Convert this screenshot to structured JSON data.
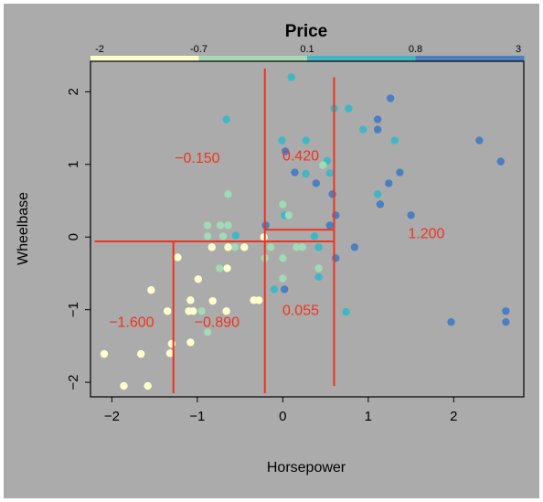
{
  "chart_data": {
    "type": "scatter",
    "title": "Price",
    "xlabel": "Horsepower",
    "ylabel": "Wheelbase",
    "xlim": [
      -2.25,
      2.82
    ],
    "ylim": [
      -2.2,
      2.42
    ],
    "x_ticks": [
      -2,
      -1,
      0,
      1,
      2
    ],
    "y_ticks": [
      -2,
      -1,
      0,
      1,
      2
    ],
    "grid": false,
    "background": "#ababab",
    "colorbar": {
      "position": "top",
      "breaks": [
        -2,
        -0.7,
        0.1,
        0.8,
        3
      ],
      "break_labels": [
        "-2",
        "-0.7",
        "0.1",
        "0.8",
        "3"
      ],
      "colors": [
        "#ffffcc",
        "#a1dab4",
        "#41b6c4",
        "#4a7fc1"
      ]
    },
    "line_color": "#f0321e",
    "partition_lines": [
      {
        "x": [
          -2.2,
          0.6
        ],
        "y": [
          -0.06,
          -0.06
        ]
      },
      {
        "x": [
          -1.28,
          -1.28
        ],
        "y": [
          -2.15,
          -0.06
        ]
      },
      {
        "x": [
          -0.21,
          -0.21
        ],
        "y": [
          -2.15,
          2.32
        ]
      },
      {
        "x": [
          -0.21,
          0.6
        ],
        "y": [
          0.1,
          0.1
        ]
      },
      {
        "x": [
          0.6,
          0.6
        ],
        "y": [
          -2.05,
          2.2
        ]
      }
    ],
    "region_labels": [
      {
        "text": "-0.150",
        "x": -1.0,
        "y": 1.1
      },
      {
        "text": "0.420",
        "x": 0.21,
        "y": 1.13
      },
      {
        "text": "1.200",
        "x": 1.68,
        "y": 0.06
      },
      {
        "text": "0.055",
        "x": 0.21,
        "y": -1.0
      },
      {
        "text": "-1.600",
        "x": -1.77,
        "y": -1.16
      },
      {
        "text": "-0.890",
        "x": -0.77,
        "y": -1.16
      }
    ],
    "points": [
      {
        "x": 0.1,
        "y": 2.2,
        "c": 3
      },
      {
        "x": -0.66,
        "y": 1.62,
        "c": 3
      },
      {
        "x": 0.6,
        "y": 1.77,
        "c": 3
      },
      {
        "x": 0.77,
        "y": 1.77,
        "c": 3
      },
      {
        "x": 0.94,
        "y": 1.48,
        "c": 3
      },
      {
        "x": 1.31,
        "y": 1.33,
        "c": 3
      },
      {
        "x": 0.27,
        "y": 1.33,
        "c": 3
      },
      {
        "x": 0.27,
        "y": 0.87,
        "c": 3
      },
      {
        "x": 0.52,
        "y": 1.05,
        "c": 3
      },
      {
        "x": 0.55,
        "y": 0.88,
        "c": 3
      },
      {
        "x": 1.11,
        "y": 0.59,
        "c": 3
      },
      {
        "x": 0.02,
        "y": 0.3,
        "c": 3
      },
      {
        "x": -0.55,
        "y": 0.02,
        "c": 3
      },
      {
        "x": 0.37,
        "y": 0.01,
        "c": 3
      },
      {
        "x": 0.42,
        "y": -0.14,
        "c": 3
      },
      {
        "x": -0.1,
        "y": -0.72,
        "c": 3
      },
      {
        "x": 0.42,
        "y": -0.55,
        "c": 3
      },
      {
        "x": 0.74,
        "y": -1.03,
        "c": 3
      },
      {
        "x": -0.01,
        "y": 1.33,
        "c": 3
      },
      {
        "x": 1.26,
        "y": 1.91,
        "c": 4
      },
      {
        "x": 1.11,
        "y": 1.62,
        "c": 4
      },
      {
        "x": 1.11,
        "y": 1.48,
        "c": 4
      },
      {
        "x": 0.03,
        "y": 1.18,
        "c": 4
      },
      {
        "x": 0.14,
        "y": 0.89,
        "c": 4
      },
      {
        "x": 1.37,
        "y": 0.89,
        "c": 4
      },
      {
        "x": 0.39,
        "y": 0.74,
        "c": 4
      },
      {
        "x": 1.24,
        "y": 0.74,
        "c": 4
      },
      {
        "x": 0.58,
        "y": 0.59,
        "c": 4
      },
      {
        "x": 1.14,
        "y": 0.45,
        "c": 4
      },
      {
        "x": 0.62,
        "y": 0.3,
        "c": 4
      },
      {
        "x": 1.5,
        "y": 0.3,
        "c": 4
      },
      {
        "x": -0.2,
        "y": 0.16,
        "c": 4
      },
      {
        "x": 0.55,
        "y": 0.16,
        "c": 4
      },
      {
        "x": 0.02,
        "y": -0.72,
        "c": 4
      },
      {
        "x": 0.84,
        "y": -0.14,
        "c": 4
      },
      {
        "x": 0.62,
        "y": -0.29,
        "c": 4
      },
      {
        "x": 2.3,
        "y": 1.33,
        "c": 4
      },
      {
        "x": 2.55,
        "y": 1.04,
        "c": 4
      },
      {
        "x": 1.97,
        "y": -1.17,
        "c": 4
      },
      {
        "x": 2.61,
        "y": -1.02,
        "c": 4
      },
      {
        "x": 2.61,
        "y": -1.17,
        "c": 4
      },
      {
        "x": -0.64,
        "y": 0.59,
        "c": 2
      },
      {
        "x": -0.88,
        "y": 0.16,
        "c": 2
      },
      {
        "x": -0.73,
        "y": 0.16,
        "c": 2
      },
      {
        "x": -0.64,
        "y": 0.16,
        "c": 2
      },
      {
        "x": -0.88,
        "y": 0.01,
        "c": 2
      },
      {
        "x": -0.7,
        "y": 0.01,
        "c": 2
      },
      {
        "x": -0.56,
        "y": -0.14,
        "c": 2
      },
      {
        "x": -0.74,
        "y": -0.43,
        "c": 2
      },
      {
        "x": 0.0,
        "y": 0.45,
        "c": 2
      },
      {
        "x": 0.16,
        "y": -0.14,
        "c": 2
      },
      {
        "x": 0.23,
        "y": -0.14,
        "c": 2
      },
      {
        "x": 0.0,
        "y": -0.29,
        "c": 2
      },
      {
        "x": -0.14,
        "y": -0.14,
        "c": 2
      },
      {
        "x": 0.42,
        "y": -0.43,
        "c": 2
      },
      {
        "x": -0.88,
        "y": -1.31,
        "c": 2
      },
      {
        "x": -0.95,
        "y": -1.02,
        "c": 2
      },
      {
        "x": 0.07,
        "y": 0.3,
        "c": 2
      },
      {
        "x": 0.47,
        "y": 0.99,
        "c": 2
      },
      {
        "x": 0.0,
        "y": -0.57,
        "c": 2
      },
      {
        "x": -0.21,
        "y": -0.29,
        "c": 2
      },
      {
        "x": -1.23,
        "y": -0.28,
        "c": 1
      },
      {
        "x": -0.83,
        "y": -0.14,
        "c": 1
      },
      {
        "x": -0.64,
        "y": -0.14,
        "c": 1
      },
      {
        "x": -0.65,
        "y": -0.43,
        "c": 1
      },
      {
        "x": -0.99,
        "y": -0.58,
        "c": 1
      },
      {
        "x": -1.54,
        "y": -0.73,
        "c": 1
      },
      {
        "x": -1.08,
        "y": -0.87,
        "c": 1
      },
      {
        "x": -0.82,
        "y": -0.88,
        "c": 1
      },
      {
        "x": -0.34,
        "y": -0.87,
        "c": 1
      },
      {
        "x": -0.28,
        "y": -0.87,
        "c": 1
      },
      {
        "x": -1.35,
        "y": -1.02,
        "c": 1
      },
      {
        "x": -1.1,
        "y": -1.02,
        "c": 1
      },
      {
        "x": -1.05,
        "y": -1.02,
        "c": 1
      },
      {
        "x": -0.66,
        "y": -1.02,
        "c": 1
      },
      {
        "x": -1.3,
        "y": -1.47,
        "c": 1
      },
      {
        "x": -1.08,
        "y": -1.45,
        "c": 1
      },
      {
        "x": -1.32,
        "y": -1.6,
        "c": 1
      },
      {
        "x": -1.66,
        "y": -1.61,
        "c": 1
      },
      {
        "x": -2.09,
        "y": -1.61,
        "c": 1
      },
      {
        "x": -1.58,
        "y": -2.05,
        "c": 1
      },
      {
        "x": -1.86,
        "y": -2.05,
        "c": 1
      },
      {
        "x": -0.22,
        "y": 0.0,
        "c": 1
      },
      {
        "x": -0.45,
        "y": -0.14,
        "c": 1
      }
    ]
  }
}
